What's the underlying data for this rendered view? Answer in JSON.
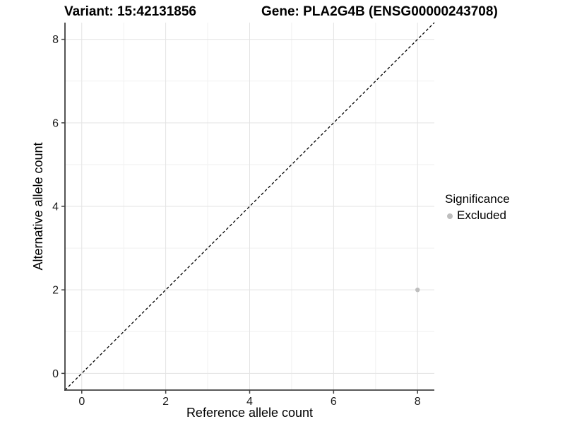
{
  "chart_data": {
    "type": "scatter",
    "title_variant": "Variant: 15:42131856",
    "title_gene": "Gene: PLA2G4B (ENSG00000243708)",
    "xlabel": "Reference allele count",
    "ylabel": "Alternative allele count",
    "xlim": [
      -0.4,
      8.4
    ],
    "ylim": [
      -0.4,
      8.4
    ],
    "xticks": [
      0,
      2,
      4,
      6,
      8
    ],
    "yticks": [
      0,
      2,
      4,
      6,
      8
    ],
    "minor_xticks": [
      1,
      3,
      5,
      7
    ],
    "minor_yticks": [
      1,
      3,
      5,
      7
    ],
    "grid": "major+minor",
    "identity_line": {
      "slope": 1,
      "intercept": 0,
      "style": "dashed",
      "color": "#000000"
    },
    "series": [
      {
        "name": "Excluded",
        "color": "#bebebe",
        "points": [
          {
            "x": 8,
            "y": 2
          }
        ]
      }
    ],
    "legend": {
      "title": "Significance",
      "position": "right",
      "entries": [
        {
          "label": "Excluded",
          "color": "#bebebe"
        }
      ]
    }
  },
  "colors": {
    "background": "#ffffff",
    "grid_major": "#e3e3e3",
    "grid_minor": "#f1f1f1",
    "axis_line": "#404040",
    "tick_text": "#1a1a1a",
    "title_text": "#000000"
  }
}
